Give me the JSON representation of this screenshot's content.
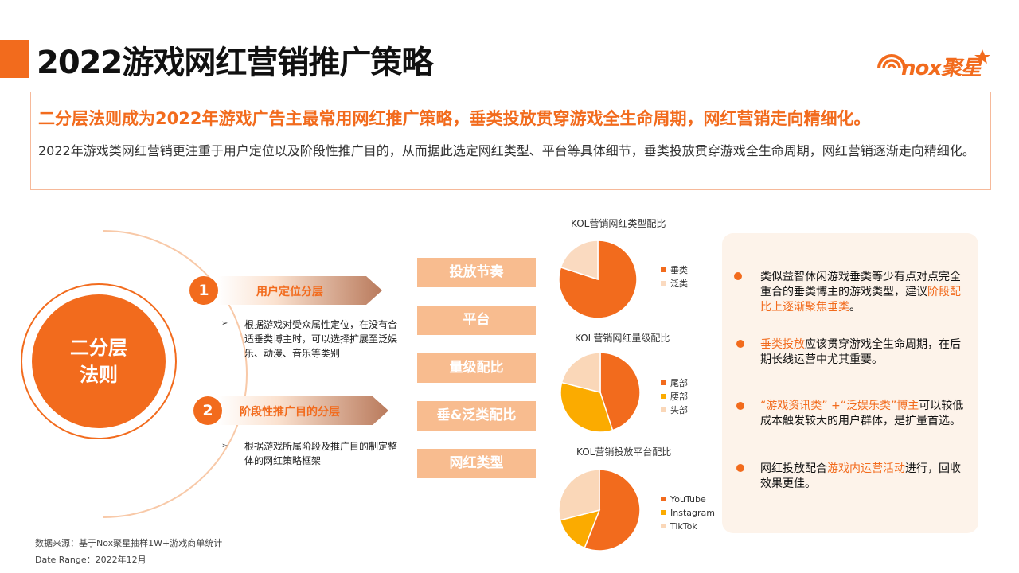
{
  "title": "2022游戏网红营销推广策略",
  "logo": {
    "text": "nox聚星"
  },
  "summary": {
    "headline": "二分层法则成为2022年游戏广告主最常用网红推广策略，垂类投放贯穿游戏全生命周期，网红营销走向精细化。",
    "description": "2022年游戏类网红营销更注重于用户定位以及阶段性推广目的，从而据此选定网红类型、平台等具体细节，垂类投放贯穿游戏全生命周期，网红营销逐渐走向精细化。"
  },
  "diagram": {
    "core_line1": "二分层",
    "core_line2": "法则",
    "layers": [
      {
        "number": "1",
        "label": "用户定位分层",
        "bullet_mark": "➢",
        "text": "根据游戏对受众属性定位，在没有合适垂类博主时，可以选择扩展至泛娱乐、动漫、音乐等类别"
      },
      {
        "number": "2",
        "label": "阶段性推广目的分层",
        "bullet_mark": "➢",
        "text": "根据游戏所属阶段及推广目的制定整体的网红策略框架"
      }
    ],
    "stack": [
      "投放节奏",
      "平台",
      "量级配比",
      "垂&泛类配比",
      "网红类型"
    ]
  },
  "chart_data": [
    {
      "type": "pie",
      "title": "KOL营销网红类型配比",
      "labels": [
        "垂类",
        "泛类"
      ],
      "values": [
        80,
        20
      ],
      "colors": [
        "#f26b1d",
        "#fadac0"
      ]
    },
    {
      "type": "pie",
      "title": "KOL营销网红量级配比",
      "labels": [
        "尾部",
        "腰部",
        "头部"
      ],
      "values": [
        45,
        34,
        21
      ],
      "colors": [
        "#f26b1d",
        "#fbab00",
        "#fad7b8"
      ]
    },
    {
      "type": "pie",
      "title": "KOL营销投放平台配比",
      "labels": [
        "YouTube",
        "Instagram",
        "TikTok"
      ],
      "values": [
        56,
        15,
        29
      ],
      "colors": [
        "#f26b1d",
        "#fbab00",
        "#fad7b8"
      ]
    }
  ],
  "insights": [
    {
      "parts": [
        {
          "t": "类似益智休闲游戏垂类等少有点对点完全重合的垂类博主的游戏类型，建议",
          "h": false
        },
        {
          "t": "阶段配比上逐渐聚焦垂类",
          "h": true
        },
        {
          "t": "。",
          "h": false
        }
      ]
    },
    {
      "parts": [
        {
          "t": "垂类投放",
          "h": true
        },
        {
          "t": "应该贯穿游戏全生命周期，在后期长线运营中尤其重要。",
          "h": false
        }
      ]
    },
    {
      "parts": [
        {
          "t": "“游戏资讯类” +“泛娱乐类”博主",
          "h": true
        },
        {
          "t": "可以较低成本触发较大的用户群体，是扩量首选。",
          "h": false
        }
      ]
    },
    {
      "parts": [
        {
          "t": "网红投放配合",
          "h": false
        },
        {
          "t": "游戏内运营活动",
          "h": true
        },
        {
          "t": "进行，回收效果更佳。",
          "h": false
        }
      ]
    }
  ],
  "footer": {
    "source": "数据来源：基于Nox聚星抽样1W+游戏商单统计",
    "date_range": "Date Range：2022年12月"
  }
}
